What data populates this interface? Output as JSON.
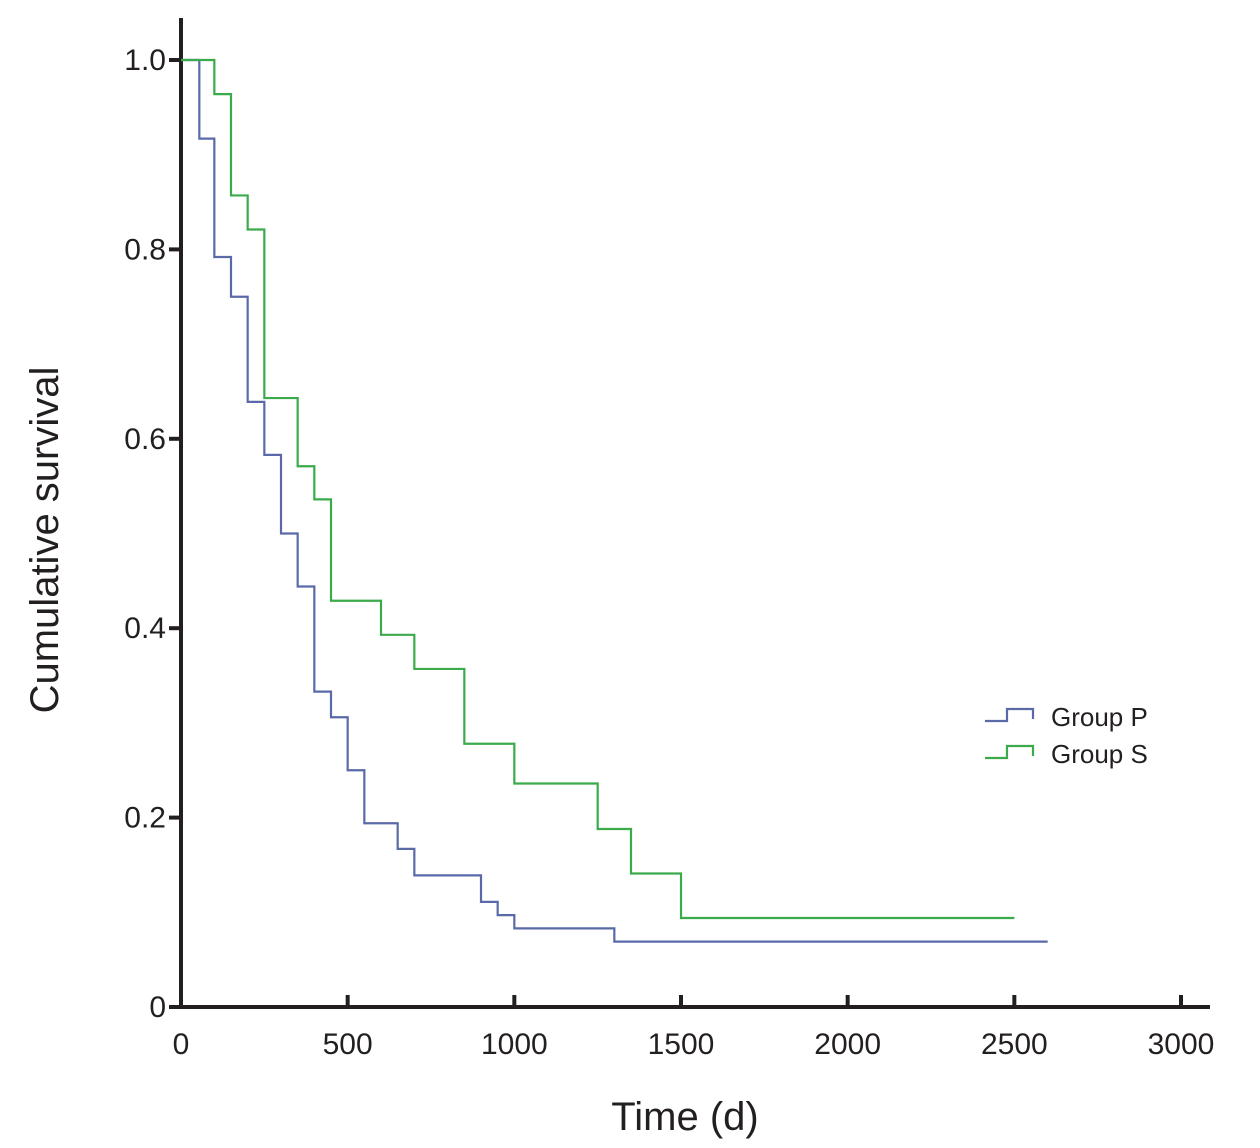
{
  "chart_data": {
    "type": "line",
    "subtype": "kaplan-meier step",
    "title": "",
    "xlabel": "Time (d)",
    "ylabel": "Cumulative survival",
    "xlim": [
      0,
      3000
    ],
    "ylim": [
      0,
      1.0
    ],
    "x_ticks": [
      0,
      500,
      1000,
      1500,
      2000,
      2500,
      3000
    ],
    "x_tick_labels": [
      "0",
      "500",
      "1000",
      "1500",
      "2000",
      "2500",
      "3000"
    ],
    "y_ticks": [
      0,
      0.2,
      0.4,
      0.6,
      0.8,
      1.0
    ],
    "y_tick_labels": [
      "0",
      "0.2",
      "0.4",
      "0.6",
      "0.8",
      "1.0"
    ],
    "grid": false,
    "legend_position": "right",
    "series": [
      {
        "name": "Group P",
        "color": "#5a6aa8",
        "x": [
          0,
          55,
          100,
          150,
          200,
          250,
          300,
          350,
          400,
          450,
          500,
          550,
          650,
          700,
          900,
          950,
          1000,
          1300,
          2600
        ],
        "y": [
          1.0,
          0.917,
          0.792,
          0.75,
          0.639,
          0.583,
          0.5,
          0.444,
          0.333,
          0.306,
          0.25,
          0.194,
          0.167,
          0.139,
          0.111,
          0.097,
          0.083,
          0.069,
          0.069
        ]
      },
      {
        "name": "Group S",
        "color": "#3aaa4a",
        "x": [
          0,
          100,
          150,
          200,
          250,
          350,
          400,
          450,
          600,
          700,
          850,
          1000,
          1250,
          1350,
          1500,
          2500
        ],
        "y": [
          1.0,
          0.964,
          0.857,
          0.821,
          0.643,
          0.571,
          0.536,
          0.429,
          0.393,
          0.357,
          0.278,
          0.236,
          0.188,
          0.141,
          0.094,
          0.094
        ]
      }
    ]
  }
}
